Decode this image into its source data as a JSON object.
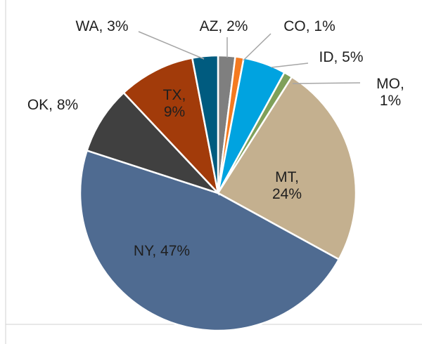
{
  "chart_data": {
    "type": "pie",
    "categories": [
      "AZ",
      "CO",
      "ID",
      "MO",
      "MT",
      "NY",
      "OK",
      "TX",
      "WA"
    ],
    "values": [
      2,
      1,
      5,
      1,
      24,
      47,
      8,
      9,
      3
    ],
    "value_labels": [
      "AZ, 2%",
      "CO, 1%",
      "ID, 5%",
      "MO,\n1%",
      "MT,\n24%",
      "NY, 47%",
      "OK, 8%",
      "TX,\n9%",
      "WA, 3%"
    ],
    "colors": [
      "#7f7f7f",
      "#f47a20",
      "#00a3e0",
      "#7fa05a",
      "#c4b08f",
      "#4f6b91",
      "#404040",
      "#a23b0a",
      "#005b7f"
    ]
  }
}
